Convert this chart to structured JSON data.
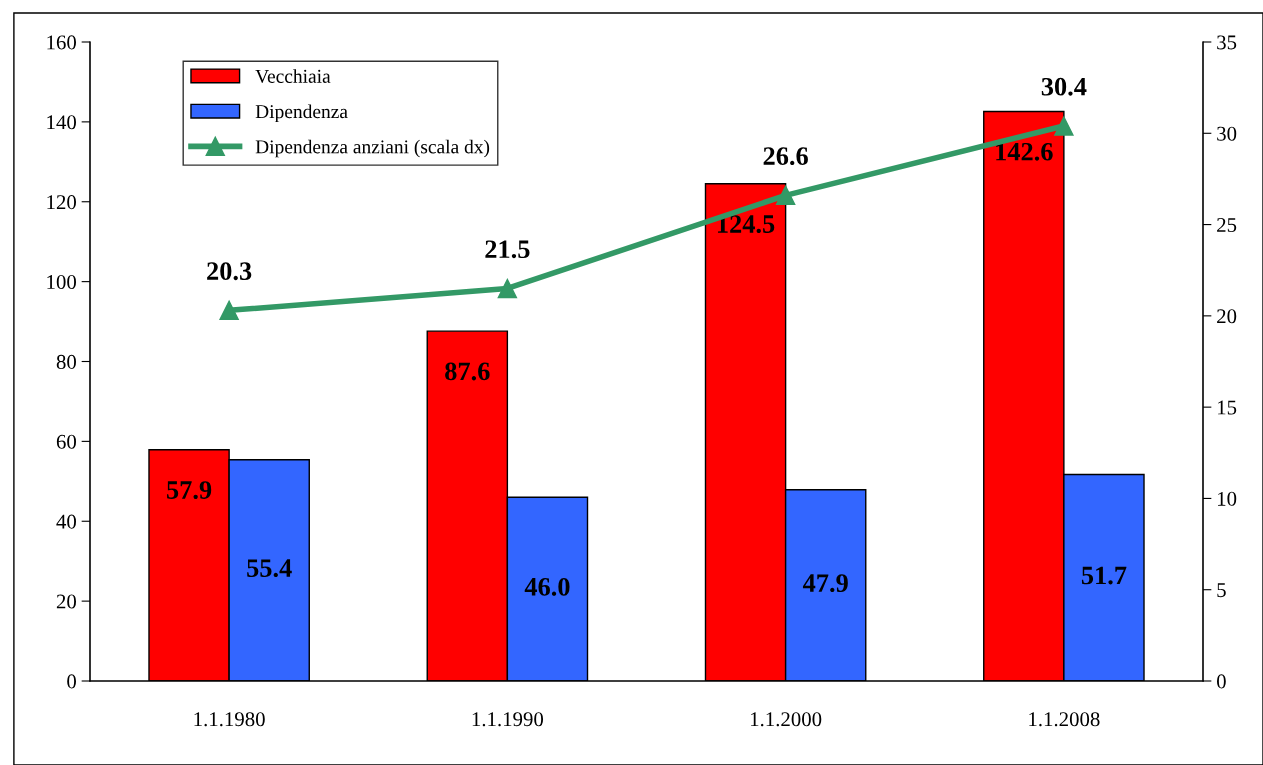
{
  "chart_data": {
    "type": "bar",
    "categories": [
      "1.1.1980",
      "1.1.1990",
      "1.1.2000",
      "1.1.2008"
    ],
    "series": [
      {
        "name": "Vecchiaia",
        "color": "#ff0000",
        "values": [
          57.9,
          87.6,
          124.5,
          142.6
        ],
        "value_labels": [
          "57.9",
          "87.6",
          "124.5",
          "142.6"
        ]
      },
      {
        "name": "Dipendenza",
        "color": "#3366ff",
        "values": [
          55.4,
          46.0,
          47.9,
          51.7
        ],
        "value_labels": [
          "55.4",
          "46.0",
          "47.9",
          "51.7"
        ]
      },
      {
        "name": "Dipendenza anziani (scala dx)",
        "type": "line",
        "axis": "y2",
        "color": "#339966",
        "marker": "triangle",
        "values": [
          20.3,
          21.5,
          26.6,
          30.4
        ],
        "value_labels": [
          "20.3",
          "21.5",
          "26.6",
          "30.4"
        ]
      }
    ],
    "ylim": [
      0,
      160
    ],
    "yticks": [
      0,
      20,
      40,
      60,
      80,
      100,
      120,
      140,
      160
    ],
    "y2lim": [
      0,
      35
    ],
    "y2ticks": [
      0,
      5,
      10,
      15,
      20,
      25,
      30,
      35
    ],
    "grid": false,
    "legend": "top left"
  }
}
